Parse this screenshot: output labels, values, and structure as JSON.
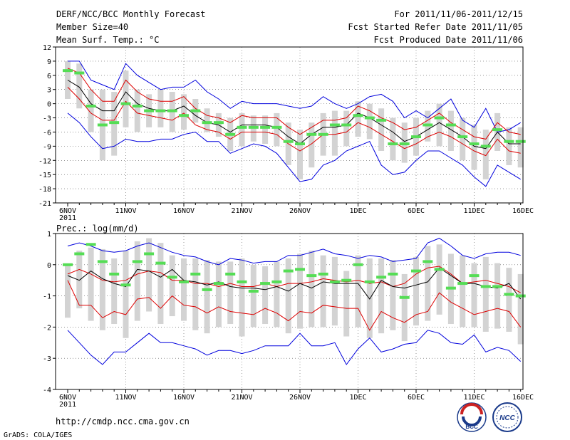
{
  "header": {
    "title": "DERF/NCC/BCC Monthly Forecast",
    "member_size": "Member Size=40",
    "variable": "Mean Surf. Temp.: °C",
    "period": "For 2011/11/06-2011/12/15",
    "fcst_started": "Fcst Started Refer Date 2011/11/05",
    "fcst_produced": "Fcst Produced Date 2011/11/06"
  },
  "footer": {
    "url": "http://cmdp.ncc.cma.gov.cn",
    "credit": "GrADS: COLA/IGES",
    "logo_bcc": "BCC",
    "logo_ncc": "NCC"
  },
  "colors": {
    "envelope": "#0000dd",
    "spread": "#dd0000",
    "mean": "#000000",
    "observed": "#55dd55",
    "box": "#d3d3d3"
  },
  "chart_data": [
    {
      "type": "line",
      "title": "Mean Surf. Temp.: °C",
      "ylim": [
        -21,
        12
      ],
      "yticks": [
        12,
        9,
        6,
        3,
        0,
        -3,
        -6,
        -9,
        -12,
        -15,
        -18,
        -21
      ],
      "x_tick_labels": [
        "6NOV",
        "11NOV",
        "16NOV",
        "21NOV",
        "26NOV",
        "1DEC",
        "6DEC",
        "11DEC",
        "16DEC"
      ],
      "x_year_label": "2011",
      "day_index": [
        0,
        1,
        2,
        3,
        4,
        5,
        6,
        7,
        8,
        9,
        10,
        11,
        12,
        13,
        14,
        15,
        16,
        17,
        18,
        19,
        20,
        21,
        22,
        23,
        24,
        25,
        26,
        27,
        28,
        29,
        30,
        31,
        32,
        33,
        34,
        35,
        36,
        37,
        38,
        39
      ],
      "series": [
        {
          "name": "max",
          "values": [
            9,
            9,
            5,
            4,
            3,
            8.5,
            6,
            4.5,
            3,
            3.5,
            3.5,
            5,
            2.5,
            1,
            -1,
            0.5,
            0,
            0,
            0,
            -0.5,
            -1,
            -0.5,
            1.5,
            0,
            -1,
            0,
            1.5,
            2,
            0.5,
            -3,
            -1.5,
            -3,
            -1,
            1,
            -3.5,
            -5,
            -1,
            -6,
            -5.5,
            -4
          ]
        },
        {
          "name": "p_high",
          "values": [
            7.5,
            6.5,
            3,
            0.5,
            0.5,
            5,
            2.5,
            1,
            0.5,
            0.5,
            1.5,
            -1,
            -2.5,
            -3,
            -4,
            -2.5,
            -3,
            -3,
            -3,
            -5,
            -6.5,
            -5,
            -3.5,
            -3.5,
            -3,
            -0.5,
            -1.5,
            -3,
            -4,
            -5.5,
            -5,
            -3.5,
            -2,
            -4,
            -5.5,
            -7,
            -7.5,
            -4,
            -6,
            -6.5
          ]
        },
        {
          "name": "mean",
          "values": [
            5,
            3.5,
            0,
            -1.5,
            -1.5,
            2.5,
            0,
            -1,
            -1.5,
            -1.5,
            -0.5,
            -2.5,
            -4,
            -4.5,
            -6,
            -4.5,
            -4.5,
            -4.5,
            -5,
            -7,
            -8.5,
            -6.5,
            -5,
            -5,
            -4.5,
            -2,
            -3,
            -4.5,
            -6,
            -8,
            -7,
            -5.5,
            -4,
            -5.5,
            -7,
            -9,
            -9.5,
            -6,
            -8.5,
            -8.5
          ]
        },
        {
          "name": "p_low",
          "values": [
            3.5,
            1,
            -2,
            -3.5,
            -3.5,
            0.5,
            -2,
            -2.5,
            -3,
            -3.5,
            -2,
            -4.5,
            -5.5,
            -6,
            -7.5,
            -6,
            -6,
            -6,
            -6.5,
            -8.5,
            -10,
            -8.5,
            -6.5,
            -6.5,
            -6,
            -4,
            -5,
            -6.5,
            -8,
            -9.5,
            -8.5,
            -7,
            -6,
            -7,
            -8.5,
            -10,
            -11,
            -7.5,
            -10,
            -10.5
          ]
        },
        {
          "name": "min",
          "values": [
            -2,
            -4,
            -7,
            -9.5,
            -9,
            -7.5,
            -8,
            -8,
            -7.5,
            -7.5,
            -6.5,
            -6,
            -8,
            -8,
            -10.5,
            -9.5,
            -8.5,
            -9,
            -10.5,
            -13.5,
            -16.5,
            -16,
            -13,
            -12,
            -10,
            -9,
            -8,
            -13,
            -15,
            -14.5,
            -12,
            -10,
            -10,
            -11.5,
            -13,
            -15.5,
            -17.5,
            -13,
            -14.5,
            -16
          ]
        },
        {
          "name": "observed",
          "values": [
            7,
            6.5,
            -0.5,
            -4.5,
            -4,
            0,
            -0.5,
            -1.5,
            -1.5,
            -1.5,
            -2.5,
            -1.5,
            -4,
            -4,
            -6.5,
            -5,
            -5,
            -5,
            -5,
            -8,
            -8.5,
            -6.5,
            -6.5,
            -4.5,
            -4.5,
            -2.5,
            -3,
            -3.5,
            -8.5,
            -8.5,
            -7,
            -4.5,
            -3,
            -4.5,
            -7,
            -8.5,
            -9,
            -5.5,
            -8,
            -8
          ]
        },
        {
          "name": "box_top",
          "values": [
            9,
            8.5,
            3,
            3,
            2.5,
            7,
            3,
            2,
            3,
            2.5,
            2,
            1,
            -1,
            -2,
            -3,
            -2,
            -2.5,
            -2.5,
            -2,
            -4,
            -5.5,
            -4,
            -2,
            -1.5,
            -1.5,
            0.5,
            0,
            -1,
            -3,
            -4,
            -3,
            -1.5,
            0,
            -1.5,
            -3,
            -4.5,
            -5.5,
            -2,
            -5,
            -5
          ]
        },
        {
          "name": "box_bottom",
          "values": [
            1,
            -1,
            -6,
            -12,
            -11,
            -5,
            -6,
            -5,
            -5,
            -6,
            -5.5,
            -4,
            -6,
            -7,
            -10,
            -9,
            -8,
            -8.5,
            -9,
            -13,
            -16,
            -13.5,
            -11,
            -11,
            -9,
            -7,
            -7.5,
            -10,
            -12,
            -12.5,
            -11,
            -8,
            -9,
            -10,
            -12,
            -14,
            -16,
            -10,
            -13,
            -13.5
          ]
        }
      ]
    },
    {
      "type": "line",
      "title": "Prec.: log(mm/d)",
      "ylim": [
        -4,
        1
      ],
      "yticks": [
        1,
        0,
        -1,
        -2,
        -3,
        -4
      ],
      "x_tick_labels": [
        "6NOV",
        "11NOV",
        "16NOV",
        "21NOV",
        "26NOV",
        "1DEC",
        "6DEC",
        "11DEC",
        "16DEC"
      ],
      "x_year_label": "2011",
      "day_index": [
        0,
        1,
        2,
        3,
        4,
        5,
        6,
        7,
        8,
        9,
        10,
        11,
        12,
        13,
        14,
        15,
        16,
        17,
        18,
        19,
        20,
        21,
        22,
        23,
        24,
        25,
        26,
        27,
        28,
        29,
        30,
        31,
        32,
        33,
        34,
        35,
        36,
        37,
        38,
        39
      ],
      "series": [
        {
          "name": "max",
          "values": [
            0.6,
            0.7,
            0.6,
            0.45,
            0.4,
            0.45,
            0.6,
            0.7,
            0.55,
            0.4,
            0.3,
            0.25,
            0.1,
            0.0,
            0.2,
            0.15,
            0.05,
            0.1,
            0.1,
            0.3,
            0.3,
            0.4,
            0.5,
            0.35,
            0.3,
            0.2,
            0.3,
            0.25,
            0.1,
            0.15,
            0.2,
            0.7,
            0.85,
            0.6,
            0.3,
            0.2,
            0.35,
            0.4,
            0.4,
            0.3
          ]
        },
        {
          "name": "p_high",
          "values": [
            -0.3,
            -0.15,
            -0.3,
            -0.5,
            -0.55,
            -0.5,
            -0.3,
            -0.2,
            -0.25,
            -0.5,
            -0.5,
            -0.6,
            -0.6,
            -0.7,
            -0.6,
            -0.7,
            -0.7,
            -0.6,
            -0.7,
            -0.6,
            -0.6,
            -0.55,
            -0.45,
            -0.5,
            -0.55,
            -0.5,
            -0.6,
            -0.55,
            -0.7,
            -0.6,
            -0.3,
            -0.1,
            -0.05,
            -0.3,
            -0.6,
            -0.55,
            -0.5,
            -0.6,
            -0.7,
            -0.9
          ]
        },
        {
          "name": "mean",
          "values": [
            -0.35,
            -0.5,
            -0.2,
            -0.45,
            -0.6,
            -0.7,
            -0.15,
            -0.2,
            -0.4,
            -0.15,
            -0.5,
            -0.55,
            -0.65,
            -0.55,
            -0.7,
            -0.75,
            -0.75,
            -0.8,
            -0.7,
            -0.85,
            -0.6,
            -0.75,
            -0.55,
            -0.6,
            -0.6,
            -0.6,
            -1.1,
            -0.5,
            -0.7,
            -0.75,
            -0.65,
            -0.55,
            -0.1,
            -0.35,
            -0.6,
            -0.6,
            -0.7,
            -0.75,
            -0.6,
            -1.1
          ]
        },
        {
          "name": "p_low",
          "values": [
            -0.5,
            -1.3,
            -1.3,
            -1.7,
            -1.5,
            -1.6,
            -1.1,
            -1.05,
            -1.4,
            -1.0,
            -1.3,
            -1.35,
            -1.55,
            -1.35,
            -1.5,
            -1.55,
            -1.6,
            -1.4,
            -1.55,
            -1.8,
            -1.5,
            -1.55,
            -1.3,
            -1.35,
            -1.4,
            -1.4,
            -2.1,
            -1.5,
            -1.7,
            -1.85,
            -1.6,
            -1.5,
            -0.9,
            -1.2,
            -1.4,
            -1.6,
            -1.5,
            -1.4,
            -1.5,
            -2.0
          ]
        },
        {
          "name": "min",
          "values": [
            -2.1,
            -2.5,
            -2.9,
            -3.2,
            -2.8,
            -2.8,
            -2.5,
            -2.2,
            -2.5,
            -2.5,
            -2.6,
            -2.7,
            -2.9,
            -2.75,
            -2.75,
            -2.85,
            -2.75,
            -2.6,
            -2.6,
            -2.6,
            -2.2,
            -2.6,
            -2.6,
            -2.5,
            -3.2,
            -2.7,
            -2.35,
            -2.8,
            -2.7,
            -2.55,
            -2.5,
            -2.1,
            -2.2,
            -2.5,
            -2.55,
            -2.25,
            -2.8,
            -2.65,
            -2.75,
            -3.1
          ]
        },
        {
          "name": "observed",
          "values": [
            0.0,
            0.35,
            0.65,
            0.1,
            -0.3,
            -0.65,
            0.1,
            0.35,
            0.05,
            -0.4,
            -0.55,
            -0.3,
            -0.8,
            -0.6,
            -0.3,
            -0.55,
            -0.85,
            -0.6,
            -0.55,
            -0.2,
            -0.15,
            -0.35,
            -0.3,
            -0.55,
            -0.5,
            0.0,
            -0.55,
            -0.4,
            -0.3,
            -1.05,
            -0.2,
            0.1,
            -0.15,
            -0.75,
            -0.6,
            -0.35,
            -0.7,
            -0.7,
            -0.95,
            -1.0
          ]
        },
        {
          "name": "box_top",
          "values": [
            0.0,
            0.45,
            0.55,
            0.5,
            0.2,
            0.45,
            0.75,
            0.85,
            0.7,
            0.3,
            0.2,
            0.2,
            0.15,
            0.1,
            0.1,
            0.2,
            0.0,
            -0.05,
            0.1,
            0.2,
            0.35,
            0.45,
            0.3,
            0.25,
            -0.2,
            0.3,
            0.2,
            0.2,
            0.15,
            -0.3,
            0.25,
            0.6,
            0.65,
            0.35,
            0.3,
            0.05,
            0.25,
            0.05,
            -0.1,
            -0.3
          ]
        },
        {
          "name": "box_bottom",
          "values": [
            -1.7,
            -1.4,
            -1.8,
            -2.1,
            -1.9,
            -2.35,
            -1.8,
            -1.5,
            -1.9,
            -1.65,
            -1.8,
            -2.1,
            -2.2,
            -2.0,
            -1.9,
            -2.3,
            -2.0,
            -1.9,
            -2.0,
            -2.2,
            -2.05,
            -2.0,
            -2.0,
            -1.95,
            -2.3,
            -2.0,
            -2.35,
            -2.2,
            -2.1,
            -2.45,
            -1.95,
            -1.8,
            -1.6,
            -1.9,
            -2.0,
            -2.0,
            -2.15,
            -2.05,
            -2.15,
            -2.55
          ]
        }
      ]
    }
  ]
}
